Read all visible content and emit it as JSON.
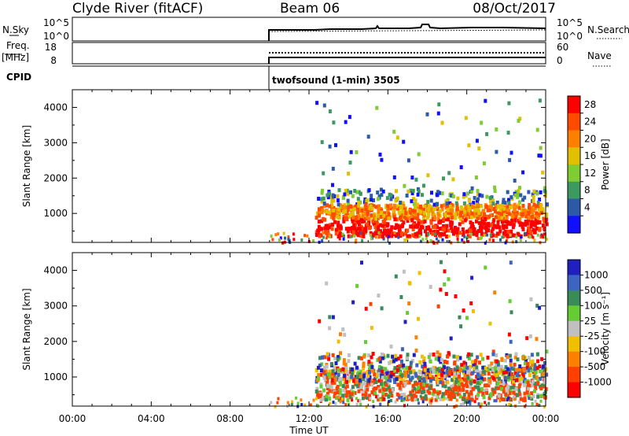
{
  "header": {
    "station": "Clyde River (fitACF)",
    "beam": "Beam 06",
    "date": "08/Oct/2017"
  },
  "noise_panel": {
    "left_label": "N.Sky",
    "right_label": "N.Search",
    "y_top": "10^5",
    "y_bottom": "10^0"
  },
  "freq_panel": {
    "left_label_1": "Freq.",
    "left_label_2": "[MHz]",
    "right_label": "Nave",
    "left_ticks": [
      "18",
      "8"
    ],
    "right_ticks": [
      "60",
      "0"
    ]
  },
  "cpid": {
    "label": "CPID",
    "value": "twofsound (1-min) 3505"
  },
  "chart_data": [
    {
      "type": "heatmap",
      "name": "Power",
      "ylabel": "Slant Range [km]",
      "yticks": [
        1000,
        2000,
        3000,
        4000
      ],
      "ylim": [
        180,
        4500
      ],
      "xlim": [
        0,
        24
      ],
      "colorbar": {
        "label": "Power [dB]",
        "ticks": [
          "28",
          "24",
          "20",
          "16",
          "12",
          "8",
          "4"
        ],
        "colors": [
          "#ff0000",
          "#ff4a00",
          "#ff7f00",
          "#e0c000",
          "#7fcc33",
          "#3c9a60",
          "#2c5aa6",
          "#1010ff"
        ]
      }
    },
    {
      "type": "heatmap",
      "name": "Velocity",
      "ylabel": "Slant Range [km]",
      "xlabel": "Time UT",
      "yticks": [
        1000,
        2000,
        3000,
        4000
      ],
      "ylim": [
        180,
        4500
      ],
      "xlim": [
        0,
        24
      ],
      "xticks": [
        "00:00",
        "04:00",
        "08:00",
        "12:00",
        "16:00",
        "20:00",
        "00:00"
      ],
      "colorbar": {
        "label": "Velocity [m s⁻¹]",
        "ticks": [
          "1000",
          "500",
          "100",
          "25",
          "-25",
          "-100",
          "-500",
          "-1000"
        ],
        "colors": [
          "#2020c0",
          "#3c64c0",
          "#3a8a5a",
          "#66cc33",
          "#c0c0c0",
          "#f0c000",
          "#ff8000",
          "#ff4000",
          "#ff0000"
        ]
      }
    }
  ]
}
